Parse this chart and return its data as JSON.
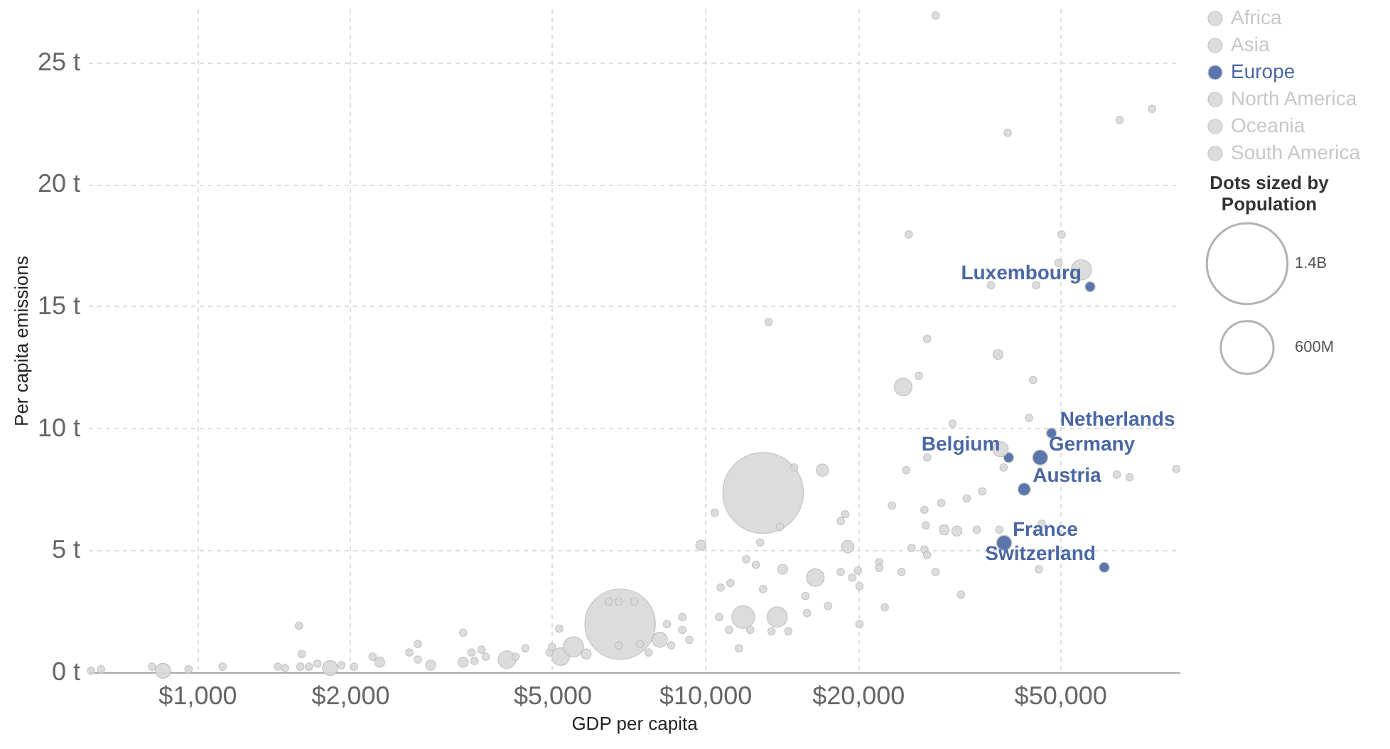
{
  "chart_data": {
    "type": "bubble",
    "xlabel": "GDP per capita",
    "ylabel": "Per capita emissions",
    "legend_title": "Population",
    "log": "x",
    "grid": true,
    "legend": "top right",
    "marker": "circle",
    "xlim": [
      610,
      86000
    ],
    "xticks": [
      {
        "value": 1000,
        "label": "$1,000"
      },
      {
        "value": 2000,
        "label": "$2,000"
      },
      {
        "value": 5000,
        "label": "$5,000"
      },
      {
        "value": 10000,
        "label": "$10,000"
      },
      {
        "value": 20000,
        "label": "$20,000"
      },
      {
        "value": 50000,
        "label": "$50,000"
      }
    ],
    "ylim": [
      0,
      27.2
    ],
    "yticks": [
      {
        "value": 0,
        "label": "0 t"
      },
      {
        "value": 5,
        "label": "5 t"
      },
      {
        "value": 10,
        "label": "10 t"
      },
      {
        "value": 15,
        "label": "15 t"
      },
      {
        "value": 20,
        "label": "20 t"
      },
      {
        "value": 25,
        "label": "25 t"
      }
    ],
    "size_legend": [
      {
        "value": 1400,
        "label": "1.4B"
      },
      {
        "value": 600,
        "label": "600M"
      }
    ],
    "series": [
      {
        "name": "Africa",
        "color": "#d9d9d9",
        "x": [
          618,
          647,
          815,
          857,
          962,
          1122,
          1442,
          1489,
          1597,
          1607,
          1660,
          1725,
          1827,
          1923,
          2038,
          2215,
          2288,
          2617,
          2720,
          2882,
          3340,
          3515,
          4074,
          9811
        ],
        "values": [
          0.06,
          0.12,
          0.23,
          0.06,
          0.12,
          0.23,
          0.23,
          0.17,
          0.23,
          0.75,
          0.23,
          0.35,
          0.17,
          0.29,
          0.23,
          0.64,
          0.41,
          0.81,
          0.52,
          0.29,
          0.41,
          0.46,
          0.52,
          5.21
        ],
        "sizes": [
          12,
          12,
          12,
          49,
          12,
          12,
          12,
          12,
          12,
          12,
          12,
          12,
          49,
          12,
          12,
          12,
          22,
          12,
          12,
          22,
          22,
          12,
          67,
          22
        ]
      },
      {
        "name": "Asia",
        "color": "#d9d9d9",
        "x": [
          1587,
          2720,
          3340,
          3470,
          3630,
          3700,
          4236,
          4429,
          4940,
          5000,
          5165,
          5198,
          5506,
          5834,
          6806,
          6467,
          6761,
          7257,
          6761,
          7447,
          7741,
          13010,
          10450,
          13340,
          11890,
          24550,
          26360,
          27370,
          28440,
          39450,
          65480,
          75860,
          37750,
          44260,
          25180,
          50350,
          36560,
          44870,
          30720,
          14050
        ],
        "values": [
          1.91,
          1.16,
          1.62,
          0.81,
          0.93,
          0.64,
          0.64,
          0.98,
          0.81,
          1.04,
          1.79,
          0.64,
          1.04,
          0.75,
          1.97,
          2.89,
          2.89,
          2.89,
          1.1,
          1.16,
          0.81,
          7.35,
          6.54,
          14.35,
          2.26,
          11.69,
          12.15,
          13.66,
          26.91,
          22.11,
          22.63,
          23.09,
          13.02,
          11.98,
          17.94,
          17.94,
          15.86,
          15.86,
          10.19,
          5.96
        ],
        "sizes": [
          12,
          12,
          12,
          12,
          12,
          12,
          12,
          12,
          12,
          12,
          12,
          67,
          88,
          22,
          1070,
          12,
          12,
          12,
          12,
          12,
          12,
          1400,
          12,
          12,
          111,
          67,
          12,
          12,
          12,
          12,
          12,
          12,
          22,
          12,
          12,
          12,
          12,
          12,
          12,
          12
        ]
      },
      {
        "name": "Europe",
        "color": "#4a67a5",
        "x": [
          57300,
          48100,
          45700,
          39600,
          42500,
          38800,
          61100
        ],
        "values": [
          15.8,
          9.8,
          8.8,
          8.8,
          7.5,
          5.3,
          4.3
        ],
        "sizes": [
          22,
          22,
          49,
          22,
          34,
          49,
          22
        ]
      },
      {
        "name": "North America",
        "color": "#d9d9d9",
        "x": [
          55070,
          49660,
          8147,
          8414,
          8577,
          9020,
          9020,
          9311,
          10660,
          10730,
          11220,
          11150,
          11660,
          13870,
          14590,
          14970,
          17030
        ],
        "values": [
          16.49,
          16.78,
          1.33,
          1.97,
          1.1,
          2.26,
          1.74,
          1.33,
          2.26,
          3.47,
          3.65,
          1.74,
          0.98,
          2.26,
          1.68,
          8.39,
          8.28
        ],
        "sizes": [
          88,
          12,
          49,
          12,
          12,
          12,
          12,
          12,
          12,
          12,
          12,
          12,
          12,
          88,
          12,
          12,
          34
        ]
      },
      {
        "name": "Oceania",
        "color": "#d9d9d9",
        "x": [
          64700,
          68550,
          84700,
          38200,
          38710,
          18880,
          18500,
          24890,
          27370,
          23330,
          27040,
          29180,
          32750,
          35140,
          19100,
          27220,
          29580,
          31320,
          34270,
          37970,
          46030,
          22020,
          22020,
          24380,
          25520,
          27040,
          27370,
          28440,
          31920,
          45420,
          43440
        ],
        "values": [
          8.1,
          7.99,
          8.33,
          9.14,
          8.39,
          6.48,
          6.19,
          8.28,
          8.8,
          6.83,
          6.66,
          6.94,
          7.12,
          7.41,
          5.15,
          6.02,
          5.84,
          5.79,
          5.84,
          5.84,
          6.08,
          4.51,
          4.28,
          4.11,
          5.09,
          5.03,
          4.8,
          4.11,
          3.18,
          4.22,
          10.42
        ],
        "sizes": [
          12,
          12,
          12,
          49,
          12,
          12,
          12,
          12,
          12,
          12,
          12,
          12,
          12,
          12,
          34,
          12,
          22,
          22,
          12,
          12,
          12,
          12,
          12,
          12,
          12,
          12,
          12,
          12,
          12,
          12,
          12
        ]
      },
      {
        "name": "South America",
        "color": "#d9d9d9",
        "x": [
          12050,
          12590,
          13010,
          12840,
          12270,
          13520,
          14220,
          15770,
          15880,
          17460,
          20140,
          20140,
          22590,
          16490,
          18500,
          19500,
          20000
        ],
        "values": [
          4.63,
          4.4,
          3.41,
          5.32,
          1.74,
          1.68,
          4.22,
          3.13,
          2.43,
          2.72,
          3.53,
          1.97,
          2.66,
          3.88,
          4.11,
          3.88,
          4.17
        ],
        "sizes": [
          12,
          12,
          12,
          12,
          12,
          12,
          22,
          12,
          12,
          12,
          12,
          12,
          12,
          67,
          12,
          12,
          12
        ]
      }
    ],
    "annotations": [
      "Dots sized by",
      {
        "text": "Luxembourg",
        "x": 57300,
        "y": 15.8
      },
      {
        "text": "Netherlands",
        "x": 48100,
        "y": 9.8
      },
      {
        "text": "Germany",
        "x": 45700,
        "y": 8.8
      },
      {
        "text": "Belgium",
        "x": 39600,
        "y": 8.8
      },
      {
        "text": "Austria",
        "x": 42500,
        "y": 7.5
      },
      {
        "text": "France",
        "x": 38800,
        "y": 5.3
      },
      {
        "text": "Switzerland",
        "x": 61100,
        "y": 4.3
      }
    ]
  }
}
